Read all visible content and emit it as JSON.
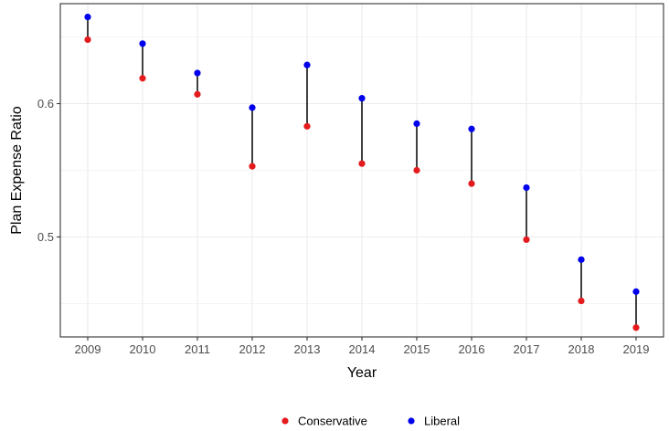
{
  "chart_data": {
    "type": "dumbbell",
    "title": "",
    "xlabel": "Year",
    "ylabel": "Plan Expense Ratio",
    "categories": [
      "2009",
      "2010",
      "2011",
      "2012",
      "2013",
      "2014",
      "2015",
      "2016",
      "2017",
      "2018",
      "2019"
    ],
    "ylim": [
      0.425,
      0.675
    ],
    "yticks": [
      0.5,
      0.6
    ],
    "ytick_labels": [
      "0.5",
      "0.6"
    ],
    "grid": true,
    "legend_position": "bottom",
    "series": [
      {
        "name": "Conservative",
        "color": "#e41a1c",
        "values": [
          0.648,
          0.619,
          0.607,
          0.553,
          0.583,
          0.555,
          0.55,
          0.54,
          0.498,
          0.452,
          0.432
        ]
      },
      {
        "name": "Liberal",
        "color": "#0000ee",
        "values": [
          0.665,
          0.645,
          0.623,
          0.597,
          0.629,
          0.604,
          0.585,
          0.581,
          0.537,
          0.483,
          0.459
        ]
      }
    ]
  }
}
